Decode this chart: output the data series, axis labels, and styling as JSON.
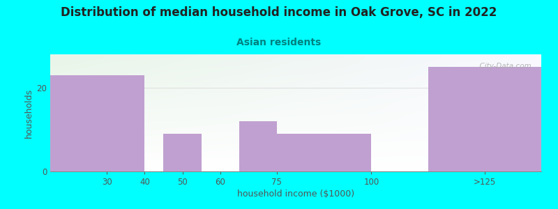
{
  "title": "Distribution of median household income in Oak Grove, SC in 2022",
  "subtitle": "Asian residents",
  "xlabel": "household income ($1000)",
  "ylabel": "households",
  "background_color": "#00FFFF",
  "plot_bg_color_topleft": "#e8f5e8",
  "plot_bg_color_topright": "#f8f8ff",
  "plot_bg_color_bottom": "#ffffff",
  "bar_color": "#C0A0D0",
  "grid_color": "#e0e0e0",
  "watermark": "  City-Data.com",
  "title_fontsize": 12,
  "subtitle_fontsize": 10,
  "axis_label_fontsize": 9,
  "tick_fontsize": 8.5,
  "bar_lefts": [
    15,
    40,
    45,
    60,
    65,
    75,
    115
  ],
  "bar_widths": [
    25,
    0,
    10,
    0,
    10,
    25,
    30
  ],
  "bar_heights": [
    23,
    0,
    9,
    0,
    12,
    9,
    25
  ],
  "xlim": [
    15,
    145
  ],
  "ylim_top": 28,
  "yticks": [
    0,
    20
  ],
  "xtick_positions": [
    30,
    40,
    50,
    60,
    75,
    100,
    130
  ],
  "xtick_labels": [
    "30",
    "40",
    "50",
    "60",
    "75",
    "100",
    ">125"
  ]
}
